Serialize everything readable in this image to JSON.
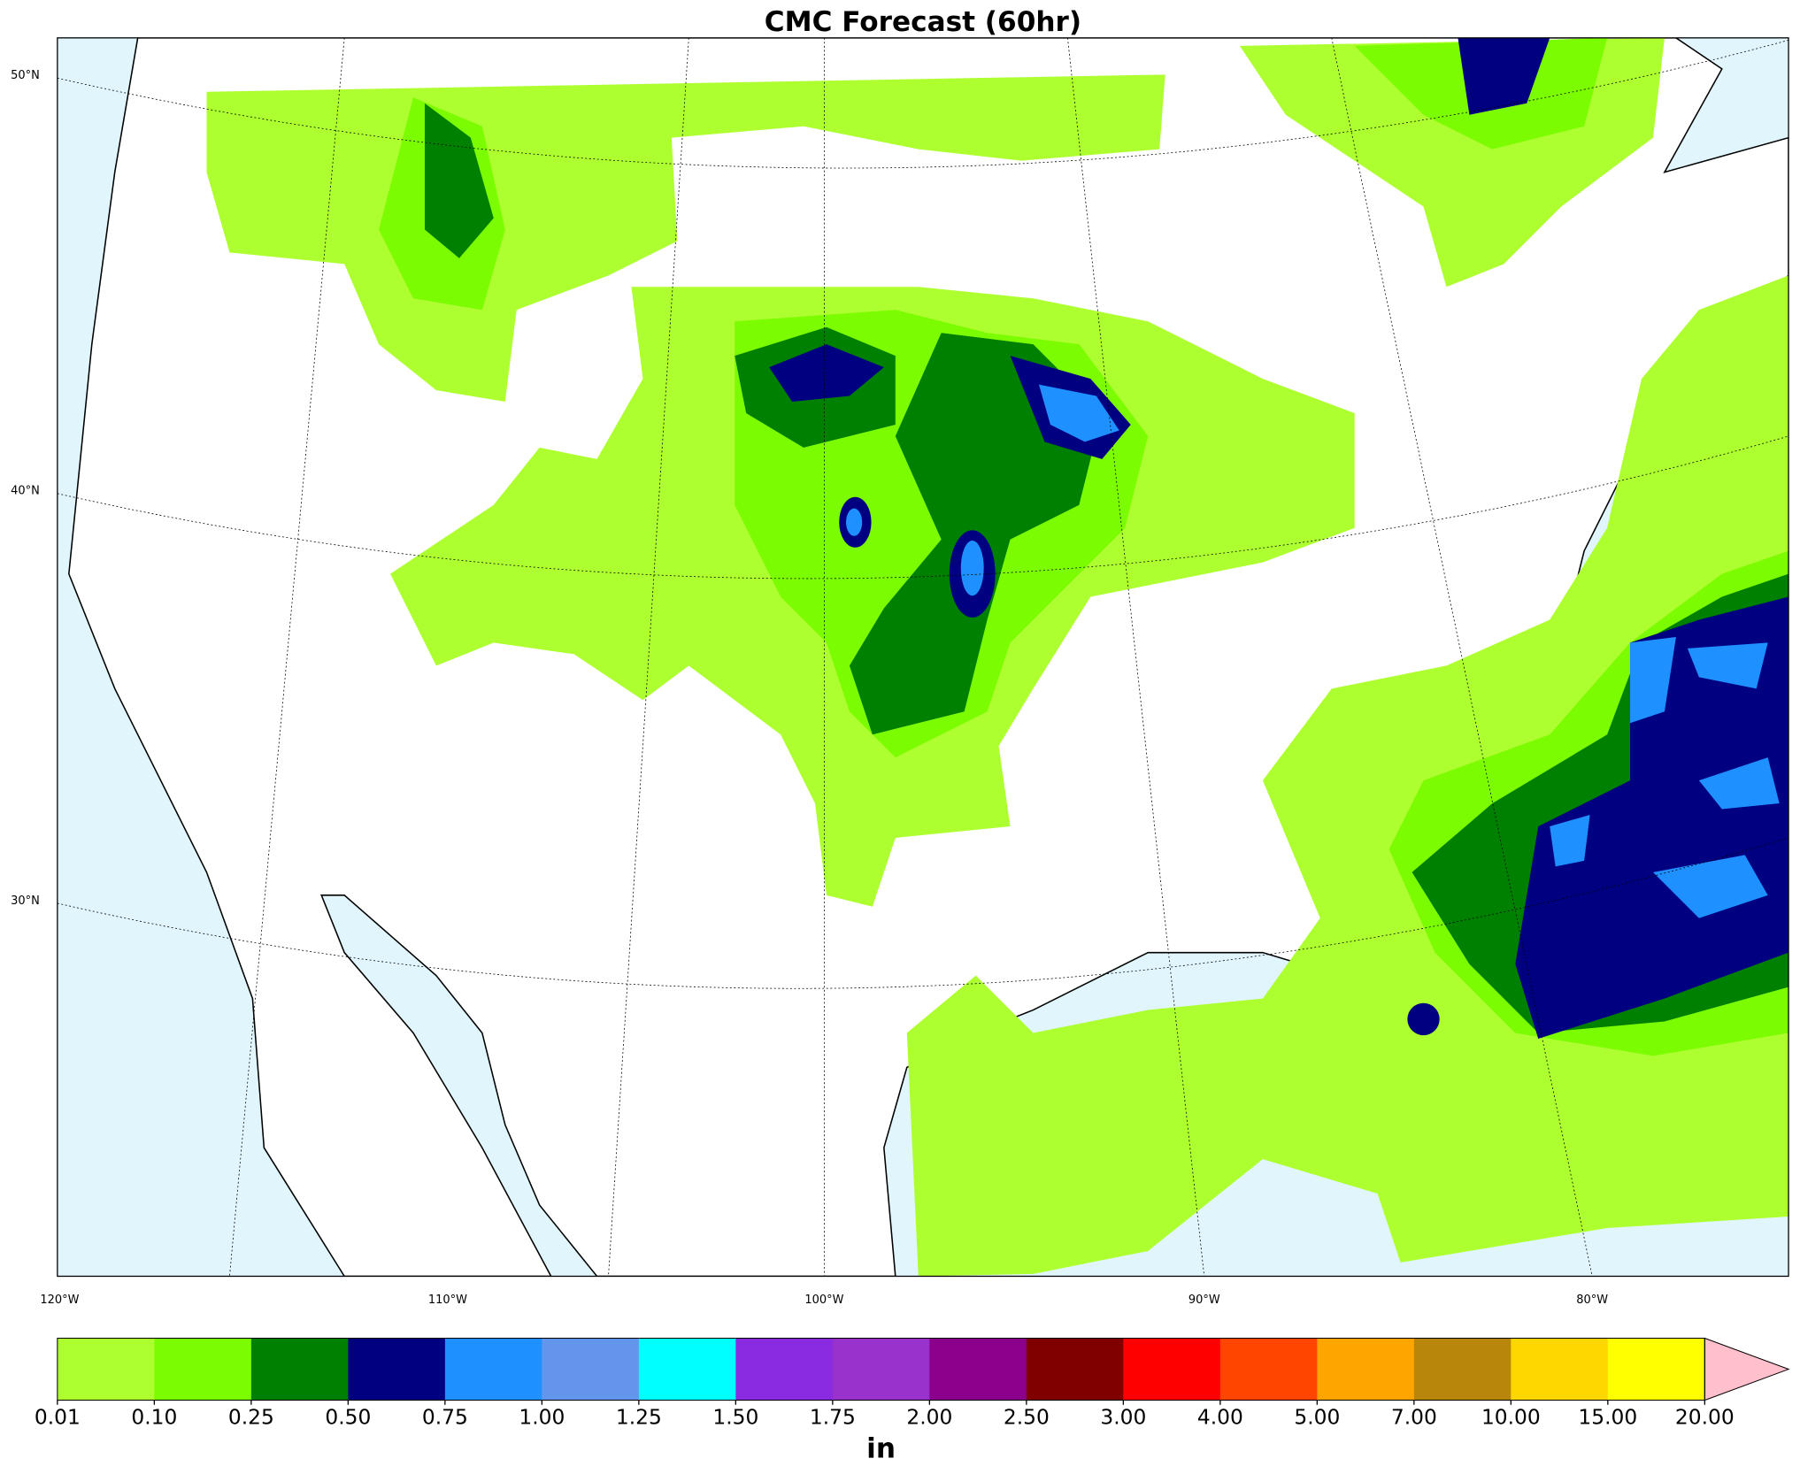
{
  "title": "CMC Forecast (60hr)",
  "map": {
    "lat_labels": [
      "50°N",
      "40°N",
      "30°N"
    ],
    "lon_labels": [
      "120°W",
      "110°W",
      "100°W",
      "90°W",
      "80°W"
    ]
  },
  "colorbar": {
    "ticks": [
      "0.01",
      "0.10",
      "0.25",
      "0.50",
      "0.75",
      "1.00",
      "1.25",
      "1.50",
      "1.75",
      "2.00",
      "2.50",
      "3.00",
      "4.00",
      "5.00",
      "7.00",
      "10.00",
      "15.00",
      "20.00"
    ],
    "colors": [
      "#adff2f",
      "#7cfc00",
      "#008000",
      "#000080",
      "#1e90ff",
      "#6495ed",
      "#00ffff",
      "#8a2be2",
      "#9932cc",
      "#8b008b",
      "#800000",
      "#ff0000",
      "#ff4500",
      "#ffa500",
      "#b8860b",
      "#ffd700",
      "#ffff00"
    ],
    "extend_color": "#ffc0cb",
    "unit": "in"
  }
}
